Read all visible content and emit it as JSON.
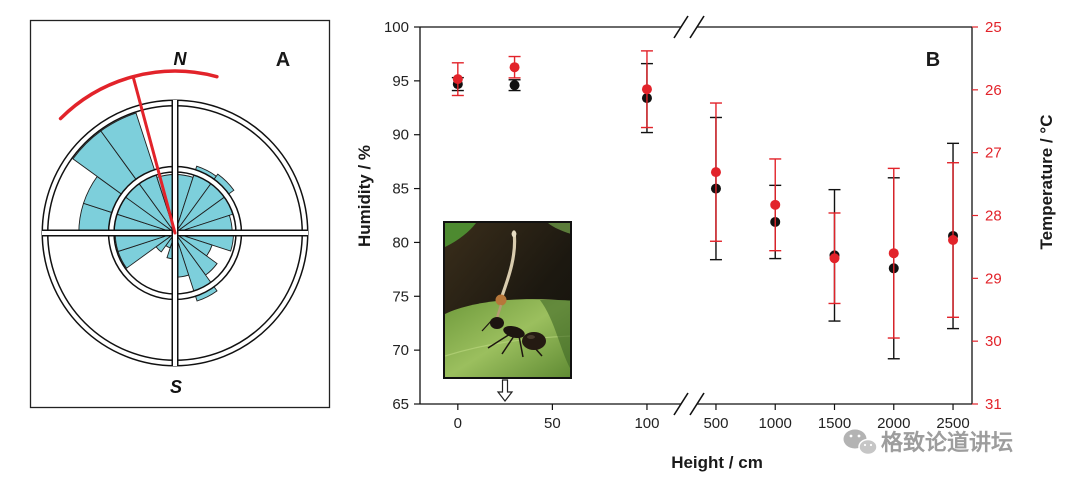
{
  "watermark": "格致论道讲坛",
  "chart_data": [
    {
      "panel_label": "A",
      "type": "bar",
      "coordinate_system": "polar",
      "compass": {
        "north": "N",
        "south": "S"
      },
      "sector_width_deg": 18,
      "values": [
        0.45,
        0.54,
        0.56,
        0.47,
        0.44,
        0.45,
        0.3,
        0.4,
        0.55,
        0.34,
        0.2,
        0.12,
        0.18,
        0.46,
        0.46,
        0.74,
        0.74,
        0.97,
        0.97,
        0.45
      ],
      "rmax": 1,
      "rings": [
        0.49,
        1
      ],
      "mean_direction_deg": 345,
      "mean_arc_deg": [
        315,
        15
      ],
      "colors": {
        "petal": "#7dcfdb",
        "mean": "#e2232a"
      }
    },
    {
      "panel_label": "B",
      "type": "scatter",
      "xlabel": "Height / cm",
      "ylabel": "Humidity / %",
      "y2label": "Temperature / °C",
      "x": [
        0,
        30,
        100,
        500,
        1000,
        1500,
        2000,
        2500
      ],
      "xticks": [
        0,
        50,
        100,
        500,
        1000,
        1500,
        2000,
        2500
      ],
      "x_segments": [
        [
          -20,
          118
        ],
        [
          340,
          2660
        ]
      ],
      "axis_break": true,
      "ylim": [
        65,
        100
      ],
      "yticks": [
        65,
        70,
        75,
        80,
        85,
        90,
        95,
        100
      ],
      "y2lim": [
        25,
        31
      ],
      "y2_inverted": true,
      "y2ticks": [
        25,
        26,
        27,
        28,
        29,
        30,
        31
      ],
      "grid": false,
      "series": [
        {
          "axis": "left",
          "color": "#111111",
          "values": [
            94.7,
            94.6,
            93.4,
            85.0,
            81.9,
            78.8,
            77.6,
            80.6
          ],
          "errors": [
            0.6,
            0.5,
            3.2,
            6.6,
            3.4,
            6.1,
            8.4,
            8.6
          ]
        },
        {
          "axis": "right",
          "color": "#e2232a",
          "values": [
            25.83,
            25.64,
            25.99,
            27.31,
            27.83,
            28.68,
            28.6,
            28.39
          ],
          "errors": [
            0.26,
            0.17,
            0.61,
            1.1,
            0.73,
            0.72,
            1.35,
            1.23
          ]
        }
      ]
    }
  ]
}
